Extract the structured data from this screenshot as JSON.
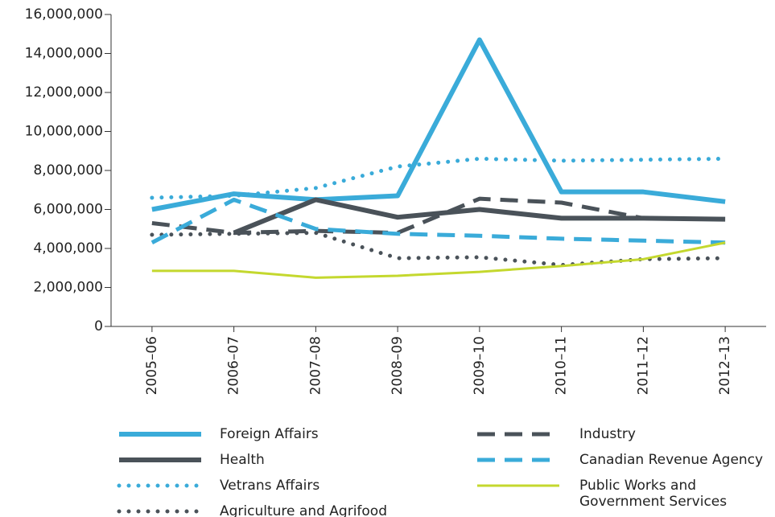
{
  "chart_data": {
    "type": "line",
    "categories": [
      "2005–06",
      "2006–07",
      "2007–08",
      "2008–09",
      "2009–10",
      "2010–11",
      "2011–12",
      "2012–13"
    ],
    "series": [
      {
        "name": "Foreign Affairs",
        "color": "#3aabd9",
        "style": "solid",
        "values": [
          6000000,
          6800000,
          6500000,
          6700000,
          14700000,
          6900000,
          6900000,
          6400000
        ]
      },
      {
        "name": "Health",
        "color": "#4a5259",
        "style": "solid",
        "values": [
          null,
          4800000,
          6500000,
          5600000,
          6000000,
          5550000,
          5550000,
          5500000
        ]
      },
      {
        "name": "Vetrans Affairs",
        "color": "#3aabd9",
        "style": "dotted",
        "values": [
          6600000,
          6700000,
          7100000,
          8200000,
          8600000,
          8500000,
          8550000,
          8600000
        ]
      },
      {
        "name": "Agriculture and Agrifood",
        "color": "#4a5259",
        "style": "dotted",
        "values": [
          4700000,
          4750000,
          4800000,
          3500000,
          3550000,
          3150000,
          3450000,
          3500000
        ]
      },
      {
        "name": "Industry",
        "color": "#4a5259",
        "style": "dashed",
        "values": [
          5300000,
          4800000,
          4900000,
          4800000,
          6550000,
          6350000,
          5550000,
          null
        ]
      },
      {
        "name": "Canadian Revenue Agency",
        "color": "#3aabd9",
        "style": "dashed",
        "values": [
          4300000,
          6500000,
          5000000,
          4750000,
          4650000,
          4500000,
          4400000,
          4300000
        ]
      },
      {
        "name": "Public Works and Government Services",
        "color": "#c4d82e",
        "style": "solid",
        "values": [
          2850000,
          2850000,
          2500000,
          2600000,
          2800000,
          3100000,
          3450000,
          4300000
        ]
      }
    ],
    "ylim": [
      0,
      16000000
    ],
    "yticks": [
      0,
      {
        "value": 2000000,
        "label": "2,000,000"
      },
      {
        "value": 4000000,
        "label": "4,000,000"
      },
      {
        "value": 6000000,
        "label": "6,000,000"
      },
      {
        "value": 8000000,
        "label": "8,000,000"
      },
      {
        "value": 10000000,
        "label": "10,000,000"
      },
      {
        "value": 12000000,
        "label": "12,000,000"
      },
      {
        "value": 14000000,
        "label": "14,000,000"
      },
      {
        "value": 16000000,
        "label": "16,000,000"
      }
    ]
  }
}
